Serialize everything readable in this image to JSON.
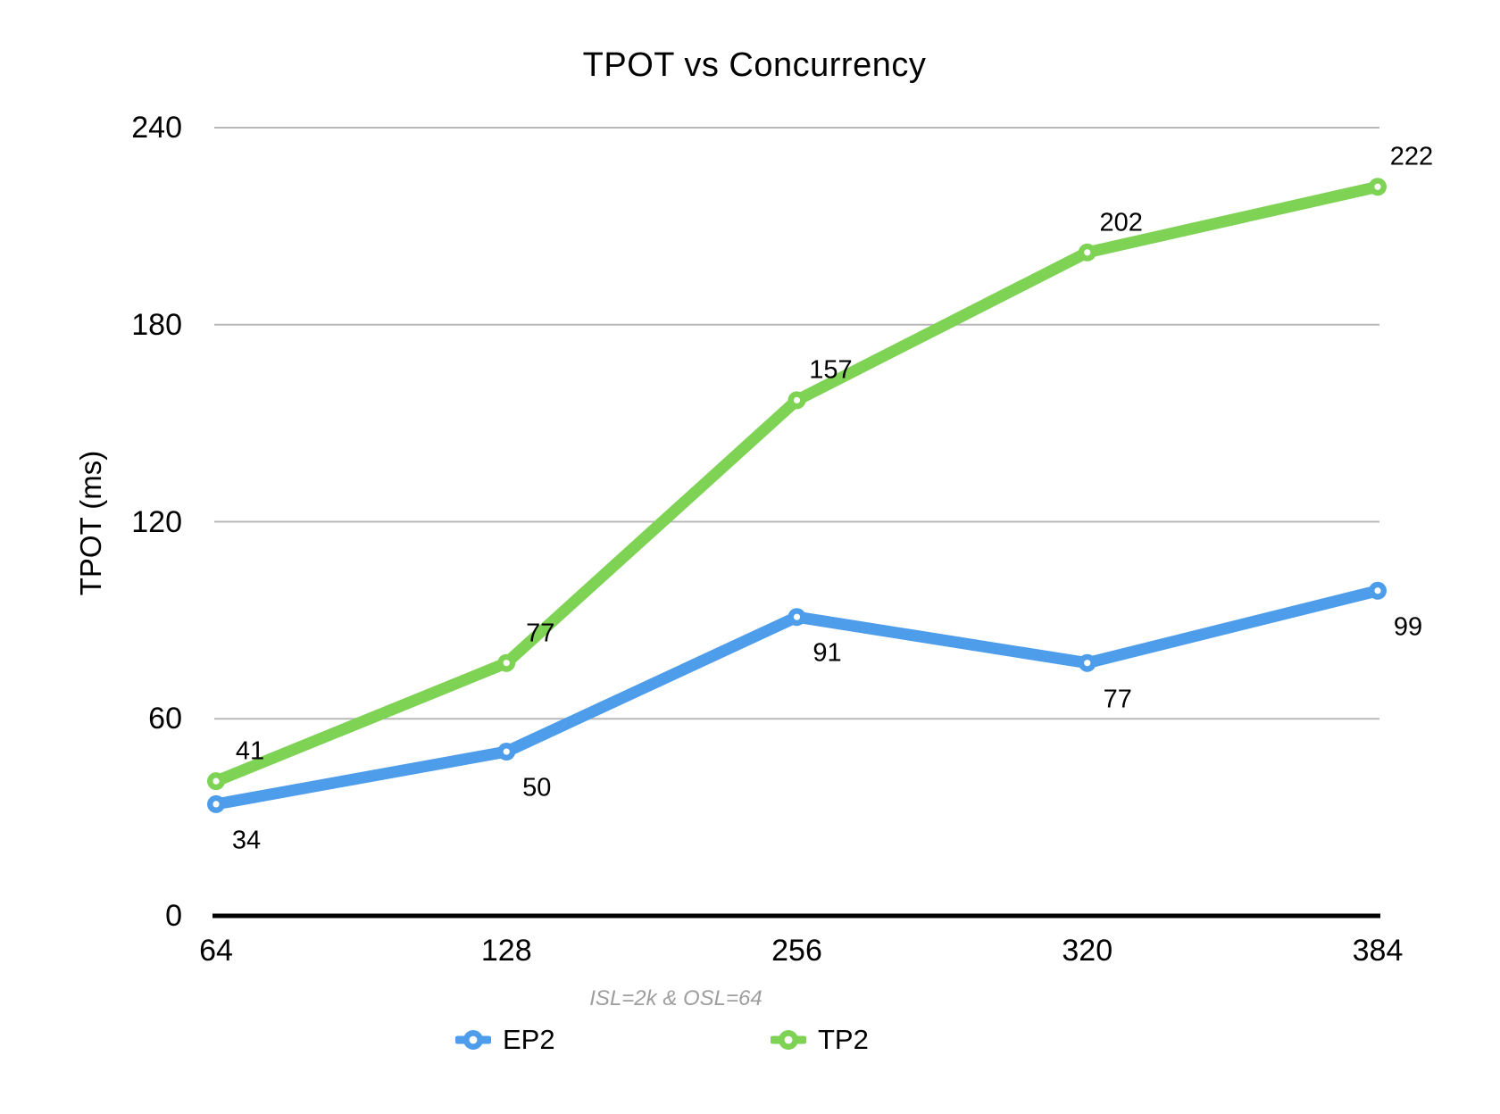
{
  "chart_data": {
    "type": "line",
    "title": "TPOT vs Concurrency",
    "ylabel": "TPOT (ms)",
    "caption": "ISL=2k & OSL=64",
    "categories": [
      "64",
      "128",
      "256",
      "320",
      "384"
    ],
    "yticks": [
      0,
      60,
      120,
      180,
      240
    ],
    "ylim": [
      0,
      240
    ],
    "grid": true,
    "legend_position": "bottom",
    "series": [
      {
        "name": "EP2",
        "values": [
          34,
          50,
          91,
          77,
          99
        ],
        "color": "#4D9DEB"
      },
      {
        "name": "TP2",
        "values": [
          41,
          77,
          157,
          202,
          222
        ],
        "color": "#7ED254"
      }
    ],
    "colors": {
      "gridline": "#B8B8B8",
      "axis": "#000000",
      "marker_center": "#FFFFFF",
      "caption_text": "#9E9E9E",
      "text": "#000000"
    }
  }
}
